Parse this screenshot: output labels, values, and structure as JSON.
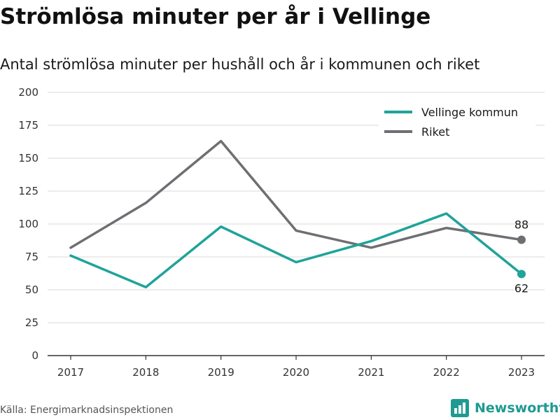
{
  "title": "Strömlösa minuter per år i Vellinge",
  "subtitle": "Antal strömlösa minuter per hushåll och år i kommunen och riket",
  "source": "Källa: Energimarknadsinspektionen",
  "brand": "Newsworthy",
  "colors": {
    "vellinge": "#1fa39a",
    "riket": "#6e6e73",
    "grid": "#d9d9d9",
    "axis": "#333333",
    "brand": "#1f9a92"
  },
  "chart_data": {
    "type": "line",
    "x": [
      "2017",
      "2018",
      "2019",
      "2020",
      "2021",
      "2022",
      "2023"
    ],
    "ylim": [
      0,
      200
    ],
    "yticks": [
      0,
      25,
      50,
      75,
      100,
      125,
      150,
      175,
      200
    ],
    "grid": true,
    "legend_position": "top-right",
    "series": [
      {
        "name": "Vellinge kommun",
        "values": [
          76,
          52,
          98,
          71,
          87,
          108,
          62
        ],
        "end_label": "62"
      },
      {
        "name": "Riket",
        "values": [
          82,
          116,
          163,
          95,
          82,
          97,
          88
        ],
        "end_label": "88"
      }
    ]
  }
}
